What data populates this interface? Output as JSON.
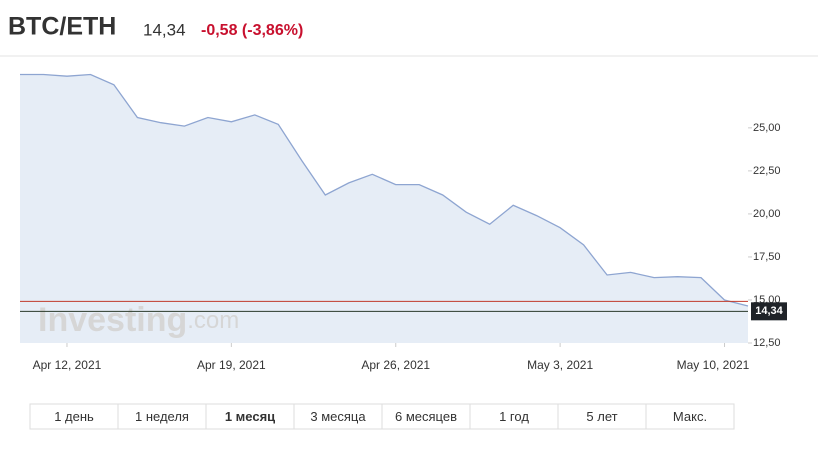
{
  "header": {
    "symbol": "BTC/ETH",
    "price": "14,34",
    "change": "-0,58 (-3,86%)"
  },
  "chart_data": {
    "type": "line",
    "x": [
      "2021-04-10",
      "2021-04-11",
      "2021-04-12",
      "2021-04-13",
      "2021-04-14",
      "2021-04-15",
      "2021-04-16",
      "2021-04-17",
      "2021-04-18",
      "2021-04-19",
      "2021-04-20",
      "2021-04-21",
      "2021-04-22",
      "2021-04-23",
      "2021-04-24",
      "2021-04-25",
      "2021-04-26",
      "2021-04-27",
      "2021-04-28",
      "2021-04-29",
      "2021-04-30",
      "2021-05-01",
      "2021-05-02",
      "2021-05-03",
      "2021-05-04",
      "2021-05-05",
      "2021-05-06",
      "2021-05-07",
      "2021-05-08",
      "2021-05-09",
      "2021-05-10",
      "2021-05-11"
    ],
    "values": [
      28.1,
      28.1,
      28.0,
      28.1,
      27.5,
      25.6,
      25.3,
      25.1,
      25.6,
      25.35,
      25.75,
      25.2,
      23.1,
      21.1,
      21.8,
      22.3,
      21.7,
      21.7,
      21.1,
      20.1,
      19.4,
      20.5,
      19.9,
      19.2,
      18.2,
      16.45,
      16.6,
      16.3,
      16.35,
      16.3,
      15.0,
      14.65
    ],
    "color": "#8ea5d1",
    "fill": "#e6edf6",
    "xlim": [
      "2021-04-10",
      "2021-05-11"
    ],
    "xticks": [
      {
        "value": "2021-04-12",
        "label": "Apr 12, 2021"
      },
      {
        "value": "2021-04-19",
        "label": "Apr 19, 2021"
      },
      {
        "value": "2021-04-26",
        "label": "Apr 26, 2021"
      },
      {
        "value": "2021-05-03",
        "label": "May 3, 2021"
      },
      {
        "value": "2021-05-10",
        "label": "May 10, 2021"
      }
    ],
    "ylim": [
      12.5,
      29
    ],
    "yticks": [
      {
        "value": 12.5,
        "label": "12,50"
      },
      {
        "value": 15,
        "label": "15,00"
      },
      {
        "value": 17.5,
        "label": "17,50"
      },
      {
        "value": 20,
        "label": "20,00"
      },
      {
        "value": 22.5,
        "label": "22,50"
      },
      {
        "value": 25,
        "label": "25,00"
      }
    ],
    "last_value": {
      "value": 14.34,
      "label": "14,34"
    },
    "prev_close": 14.92,
    "watermark": [
      "Investing",
      ".com"
    ]
  },
  "ranges": {
    "items": [
      "1 день",
      "1 неделя",
      "1 месяц",
      "3 месяца",
      "6 месяцев",
      "1 год",
      "5 лет",
      "Макс."
    ],
    "selected": 2
  }
}
